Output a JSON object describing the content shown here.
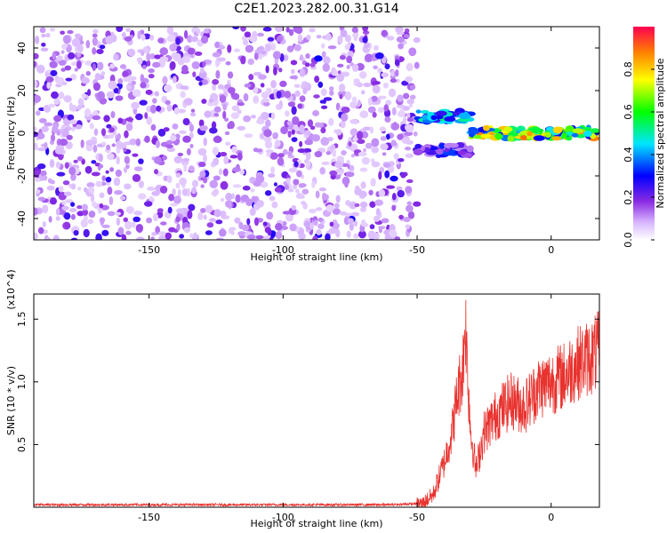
{
  "figure": {
    "title": "C2E1.2023.282.00.31.G14"
  },
  "chart_data": [
    {
      "type": "heatmap",
      "xlabel": "Height of straight line (km)",
      "ylabel": "Frequency (Hz)",
      "xlim": [
        -193,
        18
      ],
      "ylim": [
        -50,
        50
      ],
      "x_ticks": [
        -150,
        -100,
        -50,
        0
      ],
      "y_ticks": [
        -40,
        -20,
        0,
        20,
        40
      ],
      "colorbar": {
        "label": "Normalized spectral amplitude",
        "range": [
          0,
          1
        ],
        "ticks": [
          0.0,
          0.2,
          0.4,
          0.6,
          0.8
        ]
      },
      "regions": [
        {
          "description": "noise",
          "x_range": [
            -193,
            -50
          ],
          "y_range": [
            -50,
            50
          ],
          "amplitude": 0.1
        },
        {
          "x_range": [
            -50,
            -30
          ],
          "y_center": 8,
          "amplitude": 0.55
        },
        {
          "x_range": [
            -50,
            -30
          ],
          "y_center": -8,
          "amplitude": 0.35
        },
        {
          "x_range": [
            -30,
            18
          ],
          "y_center": 0,
          "amplitude": 0.9
        }
      ]
    },
    {
      "type": "line",
      "xlabel": "Height of straight line (km)",
      "ylabel": "SNR (10 * v/v)",
      "y_multiplier": "(x10^4)",
      "xlim": [
        -193,
        18
      ],
      "ylim": [
        0,
        1.7
      ],
      "x_ticks": [
        -150,
        -100,
        -50,
        0
      ],
      "y_ticks": [
        0.5,
        1.0,
        1.5
      ],
      "series": [
        {
          "color": "#e8322e",
          "x": [
            -193,
            -150,
            -100,
            -60,
            -48,
            -44,
            -40,
            -37,
            -35,
            -33,
            -32,
            -31,
            -30,
            -28,
            -25,
            -20,
            -15,
            -10,
            -5,
            0,
            5,
            10,
            15,
            18
          ],
          "y": [
            0.02,
            0.02,
            0.02,
            0.02,
            0.03,
            0.1,
            0.35,
            0.6,
            0.9,
            1.1,
            1.5,
            1.0,
            0.6,
            0.3,
            0.6,
            0.75,
            0.85,
            0.8,
            0.95,
            1.0,
            1.05,
            1.15,
            1.2,
            1.25
          ]
        }
      ]
    }
  ]
}
